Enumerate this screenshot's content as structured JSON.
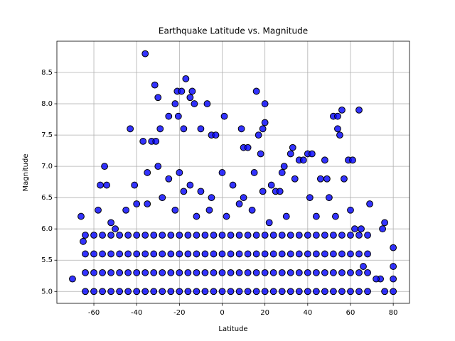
{
  "chart_data": {
    "type": "scatter",
    "title": "Earthquake Latitude vs. Magnitude",
    "x_label": "Latitude",
    "y_label": "Magnitude",
    "color": "#0000ff",
    "edgecolor": "#000000",
    "grid": true,
    "xlim": [
      -77.3,
      87.6
    ],
    "ylim": [
      4.81,
      9.0
    ],
    "xticks": [
      -60,
      -40,
      -20,
      0,
      20,
      40,
      60,
      80
    ],
    "yticks": [
      {
        "value": 5.0,
        "label": "5.0"
      },
      5.5,
      {
        "value": 6.0,
        "label": "6.0"
      },
      6.5,
      {
        "value": 7.0,
        "label": "7.0"
      },
      7.5,
      {
        "value": 8.0,
        "label": "8.0"
      },
      8.5
    ],
    "x": [
      -36,
      -31.5,
      -17,
      -21,
      -19,
      -14,
      -30,
      16,
      -15,
      20,
      -7,
      1,
      -22,
      -13,
      -20.5,
      -25,
      52,
      54,
      56,
      64,
      -43,
      55,
      54,
      20,
      19,
      -18,
      -10,
      -5,
      -3,
      9,
      10,
      12,
      17,
      33,
      32,
      -37,
      -33,
      -31,
      -29,
      40,
      42,
      59,
      61,
      -55,
      -57,
      -54,
      -41,
      -40,
      -70,
      -66,
      -65,
      75,
      76,
      74,
      72,
      76,
      80,
      80,
      80,
      80,
      69,
      65,
      28,
      29,
      36,
      38,
      46,
      49,
      48,
      25,
      23,
      27,
      34,
      -35,
      -30,
      -25,
      -20,
      -15,
      -10,
      -5,
      0,
      5,
      10,
      15,
      18,
      -35,
      -28,
      -22,
      -18,
      -12,
      -6,
      2,
      8,
      14,
      19,
      22,
      30,
      41,
      44,
      50,
      53,
      57,
      60,
      -58,
      -52,
      -45,
      -50,
      62,
      66,
      -64,
      -64,
      -64,
      -64,
      -60,
      -60,
      -60,
      -60,
      -56,
      -56,
      -56,
      -56,
      -52,
      -52,
      -52,
      -52,
      -48,
      -48,
      -48,
      -48,
      -44,
      -44,
      -44,
      -44,
      -40,
      -40,
      -40,
      -40,
      -36,
      -36,
      -36,
      -36,
      -32,
      -32,
      -32,
      -32,
      -28,
      -28,
      -28,
      -28,
      -24,
      -24,
      -24,
      -24,
      -20,
      -20,
      -20,
      -20,
      -16,
      -16,
      -16,
      -16,
      -12,
      -12,
      -12,
      -12,
      -8,
      -8,
      -8,
      -8,
      -4,
      -4,
      -4,
      -4,
      0,
      0,
      0,
      0,
      4,
      4,
      4,
      4,
      8,
      8,
      8,
      8,
      12,
      12,
      12,
      12,
      16,
      16,
      16,
      16,
      20,
      20,
      20,
      20,
      24,
      24,
      24,
      24,
      28,
      28,
      28,
      28,
      32,
      32,
      32,
      32,
      36,
      36,
      36,
      36,
      40,
      40,
      40,
      40,
      44,
      44,
      44,
      44,
      48,
      48,
      48,
      48,
      52,
      52,
      52,
      52,
      56,
      56,
      56,
      56,
      60,
      60,
      60,
      60,
      64,
      64,
      64,
      64,
      68,
      68,
      68,
      68
    ],
    "values": [
      8.8,
      8.3,
      8.4,
      8.2,
      8.2,
      8.2,
      8.1,
      8.2,
      8.1,
      8.0,
      8.0,
      7.8,
      8.0,
      8.0,
      7.8,
      7.8,
      7.8,
      7.8,
      7.9,
      7.9,
      7.6,
      7.5,
      7.6,
      7.7,
      7.6,
      7.6,
      7.6,
      7.5,
      7.5,
      7.6,
      7.3,
      7.3,
      7.5,
      7.3,
      7.2,
      7.4,
      7.4,
      7.4,
      7.6,
      7.2,
      7.2,
      7.1,
      7.1,
      7.0,
      6.7,
      6.7,
      6.7,
      6.4,
      5.2,
      6.2,
      5.8,
      6.0,
      6.1,
      5.2,
      5.2,
      5.0,
      5.7,
      5.4,
      5.2,
      5.0,
      6.4,
      6.0,
      6.9,
      7.0,
      7.1,
      7.1,
      6.8,
      6.8,
      7.1,
      6.6,
      6.7,
      6.6,
      6.8,
      6.9,
      7.0,
      6.8,
      6.9,
      6.7,
      6.6,
      6.5,
      6.9,
      6.7,
      6.5,
      6.9,
      7.2,
      6.4,
      6.5,
      6.3,
      6.6,
      6.2,
      6.3,
      6.2,
      6.4,
      6.3,
      6.6,
      6.1,
      6.2,
      6.5,
      6.2,
      6.5,
      6.2,
      6.8,
      6.3,
      6.3,
      6.1,
      6.3,
      6.0,
      6.0,
      5.4,
      5.0,
      5.3,
      5.6,
      5.9,
      5.0,
      5.3,
      5.6,
      5.9,
      5.0,
      5.3,
      5.6,
      5.9,
      5.0,
      5.3,
      5.6,
      5.9,
      5.0,
      5.3,
      5.6,
      5.9,
      5.0,
      5.3,
      5.6,
      5.9,
      5.0,
      5.3,
      5.6,
      5.9,
      5.0,
      5.3,
      5.6,
      5.9,
      5.0,
      5.3,
      5.6,
      5.9,
      5.0,
      5.3,
      5.6,
      5.9,
      5.0,
      5.3,
      5.6,
      5.9,
      5.0,
      5.3,
      5.6,
      5.9,
      5.0,
      5.3,
      5.6,
      5.9,
      5.0,
      5.3,
      5.6,
      5.9,
      5.0,
      5.3,
      5.6,
      5.9,
      5.0,
      5.3,
      5.6,
      5.9,
      5.0,
      5.3,
      5.6,
      5.9,
      5.0,
      5.3,
      5.6,
      5.9,
      5.0,
      5.3,
      5.6,
      5.9,
      5.0,
      5.3,
      5.6,
      5.9,
      5.0,
      5.3,
      5.6,
      5.9,
      5.0,
      5.3,
      5.6,
      5.9,
      5.0,
      5.3,
      5.6,
      5.9,
      5.0,
      5.3,
      5.6,
      5.9,
      5.0,
      5.3,
      5.6,
      5.9,
      5.0,
      5.3,
      5.6,
      5.9,
      5.0,
      5.3,
      5.6,
      5.9,
      5.0,
      5.3,
      5.6,
      5.9,
      5.0,
      5.3,
      5.6,
      5.9,
      5.0,
      5.3,
      5.6,
      5.9,
      5.0,
      5.3,
      5.6,
      5.9,
      5.0,
      5.3,
      5.6,
      5.9,
      5.0,
      5.3,
      5.6,
      5.9,
      5.0,
      5.3,
      5.6,
      5.9
    ]
  }
}
